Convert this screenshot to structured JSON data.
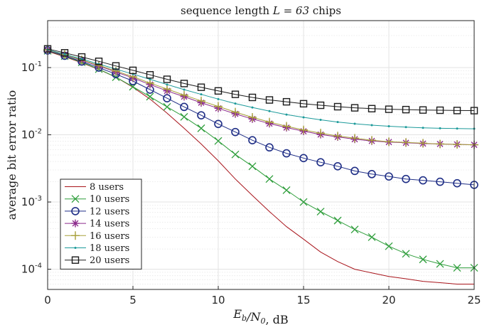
{
  "chart_data": {
    "type": "line",
    "title_text": "sequence length ",
    "title_math": "L = 63",
    "title_suffix": " chips",
    "xlabel_math": "E_b/N_0",
    "xlabel_suffix": ", dB",
    "ylabel": "average bit error ratio",
    "xlim": [
      0,
      25
    ],
    "ylim": [
      5e-05,
      0.5
    ],
    "yscale": "log",
    "grid": true,
    "legend_position": "bottom-left",
    "x_ticks": [
      "0",
      "5",
      "10",
      "15",
      "20",
      "25"
    ],
    "y_ticks": [
      {
        "base": "10",
        "exp": "-1",
        "value": 0.1
      },
      {
        "base": "10",
        "exp": "-2",
        "value": 0.01
      },
      {
        "base": "10",
        "exp": "-3",
        "value": 0.001
      },
      {
        "base": "10",
        "exp": "-4",
        "value": 0.0001
      }
    ],
    "x": [
      0,
      1,
      2,
      3,
      4,
      5,
      6,
      7,
      8,
      9,
      10,
      11,
      12,
      13,
      14,
      15,
      16,
      17,
      18,
      19,
      20,
      21,
      22,
      23,
      24,
      25
    ],
    "series": [
      {
        "name": "8 users",
        "color": "#a8141b",
        "marker": "none",
        "values": [
          0.175,
          0.145,
          0.118,
          0.094,
          0.072,
          0.051,
          0.034,
          0.021,
          0.0125,
          0.0073,
          0.0041,
          0.0022,
          0.00125,
          0.00072,
          0.00043,
          0.00028,
          0.00018,
          0.00013,
          0.0001,
          8.8e-05,
          7.8e-05,
          7.2e-05,
          6.6e-05,
          6.3e-05,
          6e-05,
          6e-05
        ]
      },
      {
        "name": "10 users",
        "color": "#2f9e3c",
        "marker": "x",
        "values": [
          0.178,
          0.148,
          0.12,
          0.095,
          0.072,
          0.052,
          0.037,
          0.026,
          0.0185,
          0.0125,
          0.0081,
          0.0051,
          0.0034,
          0.0022,
          0.0015,
          0.001,
          0.00072,
          0.00053,
          0.00039,
          0.0003,
          0.00022,
          0.00017,
          0.00014,
          0.00012,
          0.000105,
          0.000105
        ]
      },
      {
        "name": "12 users",
        "color": "#1f2e86",
        "marker": "circle",
        "values": [
          0.18,
          0.15,
          0.123,
          0.1,
          0.08,
          0.063,
          0.047,
          0.035,
          0.026,
          0.0195,
          0.0145,
          0.011,
          0.0083,
          0.0065,
          0.0053,
          0.0045,
          0.0039,
          0.0034,
          0.0029,
          0.0026,
          0.0024,
          0.0022,
          0.0021,
          0.002,
          0.0019,
          0.0018
        ]
      },
      {
        "name": "14 users",
        "color": "#8c2b8c",
        "marker": "star",
        "values": [
          0.182,
          0.155,
          0.128,
          0.106,
          0.086,
          0.07,
          0.056,
          0.045,
          0.037,
          0.03,
          0.0248,
          0.0205,
          0.0172,
          0.0147,
          0.0128,
          0.0113,
          0.0101,
          0.0093,
          0.0086,
          0.0081,
          0.0078,
          0.0076,
          0.0074,
          0.0073,
          0.0072,
          0.0071
        ]
      },
      {
        "name": "16 users",
        "color": "#a8a03a",
        "marker": "plus",
        "values": [
          0.183,
          0.156,
          0.13,
          0.108,
          0.089,
          0.073,
          0.059,
          0.048,
          0.039,
          0.032,
          0.0265,
          0.0218,
          0.0182,
          0.0155,
          0.0134,
          0.0118,
          0.0106,
          0.0096,
          0.0089,
          0.0083,
          0.0079,
          0.0077,
          0.0075,
          0.0073,
          0.0072,
          0.0071
        ]
      },
      {
        "name": "18 users",
        "color": "#1c9a9a",
        "marker": "dot",
        "values": [
          0.185,
          0.158,
          0.134,
          0.113,
          0.095,
          0.08,
          0.067,
          0.056,
          0.047,
          0.04,
          0.034,
          0.0292,
          0.0255,
          0.0225,
          0.02,
          0.0182,
          0.0167,
          0.0155,
          0.0146,
          0.0139,
          0.0134,
          0.013,
          0.0127,
          0.0125,
          0.0124,
          0.0123
        ]
      },
      {
        "name": "20 users",
        "color": "#1a1a1a",
        "marker": "square",
        "values": [
          0.19,
          0.166,
          0.144,
          0.124,
          0.106,
          0.091,
          0.078,
          0.067,
          0.058,
          0.051,
          0.045,
          0.04,
          0.036,
          0.033,
          0.031,
          0.029,
          0.0275,
          0.0262,
          0.0252,
          0.0245,
          0.024,
          0.0237,
          0.0234,
          0.0232,
          0.023,
          0.0229
        ]
      }
    ]
  }
}
